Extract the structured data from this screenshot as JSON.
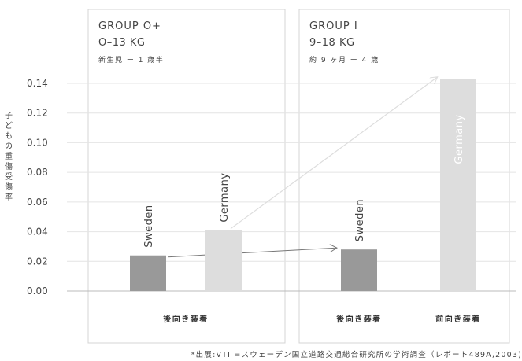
{
  "chart_data": {
    "type": "bar",
    "ylabel": "子どもの重傷受傷率",
    "yticks": [
      "0.00",
      "0.02",
      "0.04",
      "0.06",
      "0.08",
      "0.10",
      "0.12",
      "0.14"
    ],
    "ylim": [
      0,
      0.15
    ],
    "grid": true,
    "groups": [
      {
        "title": "GROUP O+",
        "weight": "O–13 KG",
        "age": "新生児 ー 1 歳半",
        "categories": [
          {
            "label": "後向き装着",
            "bars": [
              {
                "name": "Sweden",
                "value": 0.024,
                "color": "#999999"
              },
              {
                "name": "Germany",
                "value": 0.041,
                "color": "#dddddd"
              }
            ]
          }
        ]
      },
      {
        "title": "GROUP I",
        "weight": "9–18 KG",
        "age": "約 9 ヶ月 ー 4 歳",
        "categories": [
          {
            "label": "後向き装着",
            "bars": [
              {
                "name": "Sweden",
                "value": 0.028,
                "color": "#999999"
              }
            ]
          },
          {
            "label": "前向き装着",
            "bars": [
              {
                "name": "Germany",
                "value": 0.143,
                "color": "#dddddd"
              }
            ]
          }
        ]
      }
    ],
    "annotation": "*出展:VTI =スウェーデン国立道路交通総合研究所の学術調査（レポート489A,2003)"
  }
}
